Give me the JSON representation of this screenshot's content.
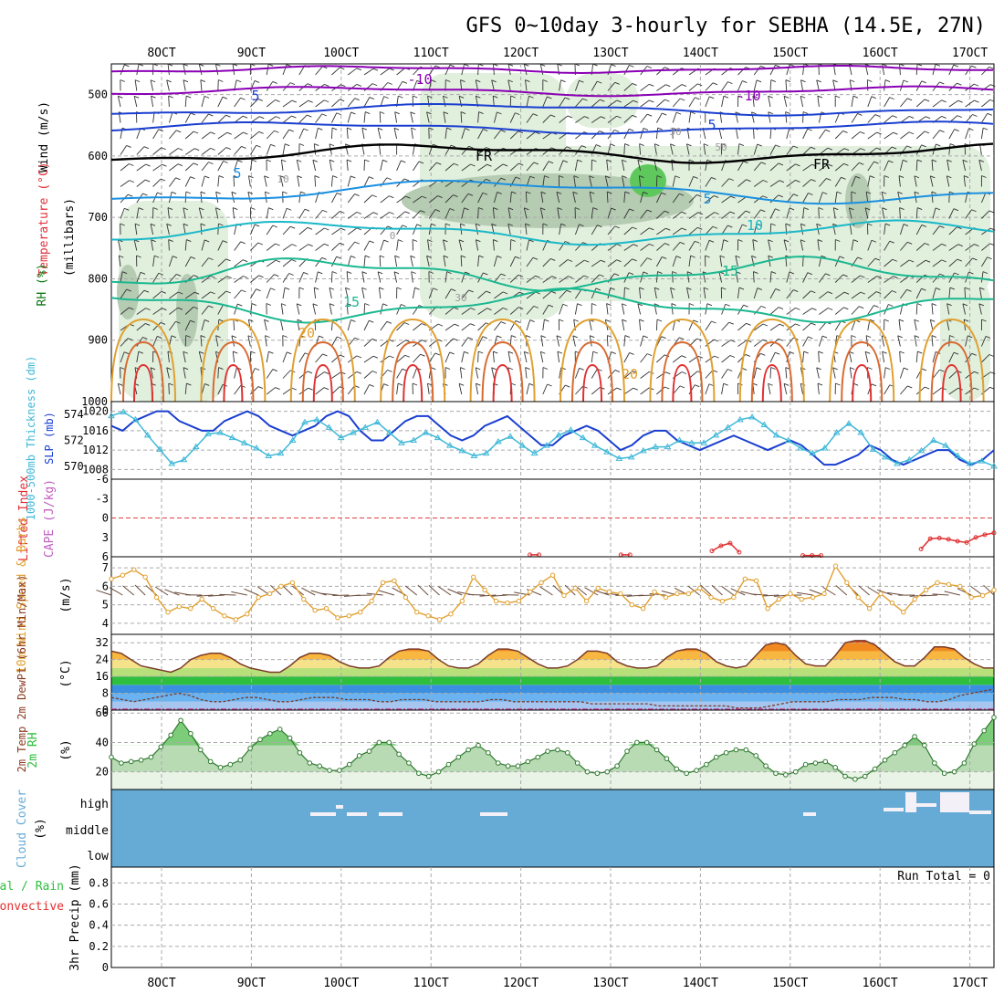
{
  "title": "GFS 0~10day 3-hourly for SEBHA (14.5E, 27N)",
  "colors": {
    "title": "#000000",
    "rh_green": "#2fbf3f",
    "temperature_label": "#e0303a",
    "temperature_label_alt": "#d06a1a",
    "wind_label": "#000000",
    "purple": "#8a00b4",
    "blue": "#1a3fd0",
    "cyan": "#3fb8d8",
    "teal": "#1abfa0",
    "orange": "#e0a030",
    "red": "#e03030",
    "cloud_blue": "#66abd6",
    "grid": "#b0b0b0"
  },
  "x_axis": {
    "tick_labels": [
      "8OCT",
      "9OCT",
      "10OCT",
      "11OCT",
      "12OCT",
      "13OCT",
      "14OCT",
      "15OCT",
      "16OCT",
      "17OCT"
    ]
  },
  "panels": {
    "upper_air": {
      "ylabels": [
        "Wind (m/s)",
        "Temperature (°C)",
        "RH (%)",
        "(millibars)"
      ],
      "ticks": [
        "500",
        "600",
        "700",
        "800",
        "900",
        "1000"
      ],
      "contour_labels": [
        "-10",
        "-10",
        "5",
        "5",
        "5",
        "5",
        "10",
        "15",
        "15",
        "20",
        "20",
        "FR",
        "FR",
        "30",
        "30",
        "50",
        "0",
        "10"
      ]
    },
    "pressure": {
      "ylabel_left": "1000-500mb Thickness (dm)",
      "ylabel_right": "SLP (mb)",
      "left_ticks": [
        "574",
        "572",
        "570"
      ],
      "right_ticks": [
        "1020",
        "1016",
        "1012",
        "1008"
      ]
    },
    "instability": {
      "ylabel_left": "Lifted Index",
      "ylabel_right": "CAPE (J/kg)",
      "ticks": [
        "-6",
        "-3",
        "0",
        "3",
        "6"
      ]
    },
    "wind10m": {
      "ylabel": "10m Wind Speed & Barbs",
      "unit": "(m/s)",
      "ticks": [
        "7",
        "6",
        "5",
        "4"
      ]
    },
    "temp2m": {
      "ylabel": "2m Temp 2m DewPt (6hr Min/Max)",
      "unit": "(°C)",
      "ticks": [
        "32",
        "24",
        "16",
        "8",
        "0"
      ]
    },
    "rh2m": {
      "ylabel": "2m RH",
      "unit": "(%)",
      "ticks": [
        "60",
        "40",
        "20"
      ]
    },
    "cloud": {
      "ylabel": "Cloud Cover",
      "unit": "(%)",
      "levels": [
        "high",
        "middle",
        "low"
      ]
    },
    "precip": {
      "ylabel_a": "Total / Rain",
      "ylabel_b": "Convective",
      "ylabel_c": "3hr Precip (mm)",
      "ticks": [
        "0.8",
        "0.6",
        "0.4",
        "0.2",
        "0"
      ],
      "run_total": "Run Total = 0"
    }
  },
  "chart_data": [
    {
      "type": "line",
      "title": "GFS 0~10day 3-hourly for SEBHA (14.5E, 27N)",
      "xlabel": "",
      "ylabel": "SLP (mb)",
      "x_start": "8OCT",
      "x_step_hours": 3,
      "series": [
        {
          "name": "SLP (mb)",
          "values": [
            1017,
            1016,
            1018,
            1019,
            1020,
            1020,
            1018,
            1017,
            1016,
            1016,
            1018,
            1019,
            1020,
            1019,
            1017,
            1016,
            1015,
            1016,
            1017,
            1019,
            1020,
            1019,
            1016,
            1014,
            1014,
            1016,
            1018,
            1019,
            1019,
            1017,
            1015,
            1014,
            1015,
            1017,
            1018,
            1019,
            1017,
            1015,
            1013,
            1013,
            1015,
            1016,
            1017,
            1016,
            1014,
            1012,
            1013,
            1015,
            1016,
            1016,
            1014,
            1013,
            1012,
            1013,
            1014,
            1015,
            1014,
            1013,
            1012,
            1013,
            1014,
            1013,
            1011,
            1009,
            1009,
            1010,
            1011,
            1013,
            1012,
            1010,
            1009,
            1010,
            1011,
            1012,
            1012,
            1010,
            1009,
            1010,
            1012
          ]
        },
        {
          "name": "1000-500mb Thickness (dm)",
          "values": [
            573.9,
            574.2,
            573.6,
            572.4,
            571.3,
            570.2,
            570.5,
            571.5,
            572.5,
            572.6,
            572.2,
            571.8,
            571.4,
            570.8,
            571.0,
            572.0,
            573.4,
            573.6,
            573.0,
            572.2,
            572.6,
            573.0,
            573.4,
            572.6,
            571.8,
            572.0,
            572.6,
            572.2,
            571.6,
            571.2,
            570.8,
            571.0,
            571.9,
            572.3,
            571.6,
            571.0,
            571.6,
            572.4,
            572.8,
            572.2,
            571.6,
            571.1,
            570.6,
            570.7,
            571.2,
            571.5,
            571.5,
            572.0,
            571.8,
            571.8,
            572.4,
            573.0,
            573.6,
            573.8,
            573.2,
            572.4,
            572.0,
            571.4,
            571.0,
            571.4,
            572.6,
            573.3,
            572.6,
            571.3,
            570.7,
            570.2,
            570.5,
            571.2,
            572.0,
            571.6,
            570.8,
            570.2,
            570.4,
            570.0
          ]
        }
      ],
      "ylim": [
        1006,
        1022
      ]
    },
    {
      "type": "line",
      "title": "",
      "xlabel": "",
      "ylabel": "10m Wind Speed (m/s)",
      "series": [
        {
          "name": "10m Wind Speed",
          "values": [
            6.4,
            6.6,
            6.9,
            6.5,
            5.4,
            4.6,
            4.9,
            4.8,
            5.3,
            4.8,
            4.4,
            4.2,
            4.5,
            5.4,
            5.6,
            6.0,
            6.2,
            5.3,
            4.7,
            4.8,
            4.3,
            4.4,
            4.6,
            5.2,
            6.2,
            6.3,
            5.4,
            4.6,
            4.4,
            4.2,
            4.5,
            5.2,
            6.5,
            5.8,
            5.2,
            5.1,
            5.2,
            5.7,
            6.2,
            6.6,
            5.5,
            5.9,
            5.2,
            5.9,
            5.7,
            5.6,
            5.0,
            4.8,
            5.7,
            5.4,
            5.6,
            5.6,
            5.9,
            5.4,
            5.2,
            5.4,
            6.4,
            6.3,
            4.8,
            5.3,
            5.6,
            5.3,
            5.4,
            5.6,
            7.1,
            6.2,
            5.4,
            4.8,
            5.6,
            5.1,
            4.6,
            5.3,
            5.8,
            6.2,
            6.1,
            6.0,
            5.4,
            5.5,
            5.8
          ]
        }
      ],
      "ylim": [
        3.4,
        7.6
      ]
    },
    {
      "type": "area",
      "title": "",
      "xlabel": "",
      "ylabel": "2m Temp (°C)",
      "series": [
        {
          "name": "2m Temp",
          "values": [
            28,
            27,
            24,
            21,
            20,
            19,
            18,
            20,
            24,
            26,
            27,
            27,
            25,
            22,
            20,
            19,
            18,
            18,
            21,
            25,
            27,
            27,
            26,
            23,
            21,
            20,
            20,
            21,
            25,
            28,
            29,
            29,
            28,
            24,
            21,
            20,
            20,
            22,
            26,
            29,
            29,
            28,
            25,
            22,
            20,
            20,
            21,
            24,
            28,
            28,
            27,
            23,
            21,
            20,
            20,
            21,
            25,
            28,
            29,
            29,
            27,
            23,
            21,
            20,
            21,
            26,
            31,
            32,
            31,
            26,
            22,
            21,
            21,
            26,
            32,
            33,
            33,
            31,
            27,
            23,
            21,
            21,
            25,
            30,
            30,
            29,
            25,
            22,
            20,
            20
          ]
        },
        {
          "name": "2m DewPt",
          "values": [
            6,
            5,
            4,
            5,
            6,
            7,
            8,
            7,
            5,
            4,
            4,
            5,
            6,
            6,
            5,
            4,
            4,
            5,
            6,
            6,
            6,
            5,
            5,
            5,
            4,
            4,
            5,
            5,
            5,
            4,
            4,
            4,
            4,
            4,
            5,
            5,
            4,
            4,
            4,
            4,
            4,
            4,
            4,
            3,
            3,
            3,
            3,
            3,
            3,
            2,
            2,
            2,
            2,
            2,
            2,
            2,
            1,
            1,
            1,
            2,
            3,
            4,
            4,
            4,
            4,
            5,
            5,
            5,
            6,
            6,
            6,
            5,
            5,
            4,
            4,
            5,
            7,
            8,
            9,
            10
          ]
        }
      ],
      "ylim": [
        0,
        36
      ]
    },
    {
      "type": "area",
      "title": "",
      "xlabel": "",
      "ylabel": "2m RH (%)",
      "series": [
        {
          "name": "2m RH",
          "values": [
            30,
            26,
            27,
            28,
            30,
            37,
            45,
            55,
            46,
            35,
            27,
            23,
            25,
            28,
            36,
            42,
            46,
            49,
            43,
            33,
            26,
            24,
            21,
            21,
            25,
            31,
            34,
            40,
            40,
            32,
            26,
            19,
            17,
            20,
            25,
            30,
            35,
            38,
            33,
            26,
            24,
            24,
            27,
            30,
            34,
            35,
            33,
            26,
            20,
            19,
            20,
            24,
            34,
            40,
            40,
            35,
            29,
            22,
            19,
            21,
            25,
            30,
            33,
            35,
            35,
            31,
            24,
            19,
            18,
            20,
            25,
            26,
            27,
            23,
            17,
            15,
            17,
            22,
            28,
            33,
            38,
            44,
            38,
            26,
            19,
            20,
            26,
            39,
            48,
            57
          ]
        }
      ],
      "ylim": [
        8,
        62
      ]
    },
    {
      "type": "line",
      "title": "",
      "xlabel": "",
      "ylabel": "Lifted Index",
      "series": [
        {
          "name": "Lifted Index",
          "values": [
            null,
            null,
            null,
            null,
            null,
            null,
            null,
            null,
            null,
            null,
            null,
            null,
            null,
            null,
            null,
            null,
            null,
            null,
            null,
            null,
            null,
            null,
            null,
            null,
            null,
            null,
            null,
            null,
            null,
            null,
            null,
            null,
            null,
            null,
            null,
            null,
            null,
            null,
            null,
            null,
            null,
            null,
            null,
            null,
            null,
            null,
            5.7,
            5.7,
            null,
            null,
            null,
            null,
            null,
            null,
            null,
            null,
            5.7,
            5.7,
            null,
            null,
            null,
            null,
            null,
            null,
            null,
            null,
            5.1,
            4.3,
            3.9,
            5.3,
            null,
            null,
            null,
            null,
            null,
            null,
            5.8,
            5.8,
            5.8,
            null,
            null,
            null,
            null,
            null,
            null,
            null,
            null,
            null,
            null,
            4.8,
            3.2,
            3.1,
            3.3,
            3.6,
            3.8,
            3.0,
            2.6,
            2.3
          ]
        }
      ],
      "ylim": [
        -6,
        6
      ]
    }
  ]
}
